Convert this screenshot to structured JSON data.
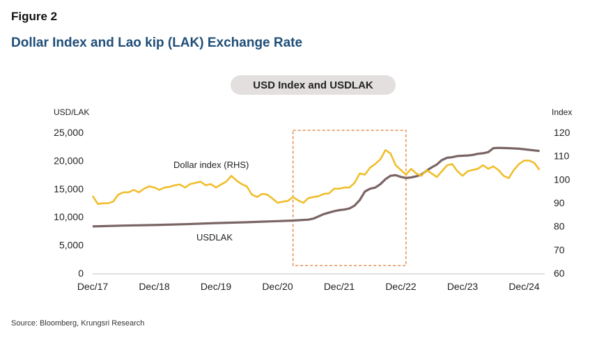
{
  "figure_label": "Figure 2",
  "title": "Dollar Index and Lao kip (LAK) Exchange Rate",
  "chart_title": "USD Index and USDLAK",
  "source": "Source: Bloomberg, Krungsri Research",
  "colors": {
    "dxy": "#f0be2c",
    "lak": "#7a6464",
    "box": "#e07a2e",
    "title": "#1f4e79"
  },
  "chart_data": {
    "type": "line",
    "y_left_label": "USD/LAK",
    "y_right_label": "Index",
    "y_left_ticks": [
      "25,000",
      "20,000",
      "15,000",
      "10,000",
      "5,000",
      "0"
    ],
    "y_right_ticks": [
      "120",
      "110",
      "100",
      "90",
      "80",
      "70",
      "60"
    ],
    "ylim_left": [
      0,
      25000
    ],
    "ylim_right": [
      60,
      120
    ],
    "x_ticks": [
      "Dec/17",
      "Dec/18",
      "Dec/19",
      "Dec/20",
      "Dec/21",
      "Dec/22",
      "Dec/23",
      "Dec/24"
    ],
    "highlight": {
      "x_start": "2021-03",
      "x_end": "2023-01"
    },
    "series": [
      {
        "name": "Dollar index (RHS)",
        "axis": "right",
        "points": [
          [
            "2017-12",
            93.0
          ],
          [
            "2018-01",
            89.5
          ],
          [
            "2018-02",
            89.8
          ],
          [
            "2018-03",
            89.8
          ],
          [
            "2018-04",
            90.5
          ],
          [
            "2018-05",
            93.5
          ],
          [
            "2018-06",
            94.5
          ],
          [
            "2018-07",
            94.5
          ],
          [
            "2018-08",
            95.5
          ],
          [
            "2018-09",
            94.5
          ],
          [
            "2018-10",
            96.0
          ],
          [
            "2018-11",
            97.0
          ],
          [
            "2018-12",
            96.5
          ],
          [
            "2019-01",
            95.5
          ],
          [
            "2019-02",
            96.5
          ],
          [
            "2019-03",
            96.8
          ],
          [
            "2019-04",
            97.5
          ],
          [
            "2019-05",
            97.8
          ],
          [
            "2019-06",
            96.5
          ],
          [
            "2019-07",
            98.0
          ],
          [
            "2019-08",
            98.5
          ],
          [
            "2019-09",
            99.0
          ],
          [
            "2019-10",
            97.5
          ],
          [
            "2019-11",
            98.0
          ],
          [
            "2019-12",
            96.5
          ],
          [
            "2020-01",
            97.8
          ],
          [
            "2020-02",
            99.0
          ],
          [
            "2020-03",
            101.5
          ],
          [
            "2020-04",
            99.5
          ],
          [
            "2020-05",
            98.0
          ],
          [
            "2020-06",
            97.0
          ],
          [
            "2020-07",
            93.5
          ],
          [
            "2020-08",
            92.5
          ],
          [
            "2020-09",
            93.8
          ],
          [
            "2020-10",
            93.5
          ],
          [
            "2020-11",
            91.8
          ],
          [
            "2020-12",
            90.0
          ],
          [
            "2021-01",
            90.5
          ],
          [
            "2021-02",
            90.8
          ],
          [
            "2021-03",
            92.5
          ],
          [
            "2021-04",
            91.0
          ],
          [
            "2021-05",
            90.0
          ],
          [
            "2021-06",
            92.0
          ],
          [
            "2021-07",
            92.5
          ],
          [
            "2021-08",
            92.8
          ],
          [
            "2021-09",
            93.8
          ],
          [
            "2021-10",
            94.0
          ],
          [
            "2021-11",
            96.0
          ],
          [
            "2021-12",
            96.0
          ],
          [
            "2022-01",
            96.5
          ],
          [
            "2022-02",
            96.5
          ],
          [
            "2022-03",
            98.5
          ],
          [
            "2022-04",
            102.5
          ],
          [
            "2022-05",
            102.0
          ],
          [
            "2022-06",
            105.0
          ],
          [
            "2022-07",
            106.5
          ],
          [
            "2022-08",
            108.5
          ],
          [
            "2022-09",
            112.5
          ],
          [
            "2022-10",
            111.0
          ],
          [
            "2022-11",
            106.0
          ],
          [
            "2022-12",
            104.0
          ],
          [
            "2023-01",
            102.0
          ],
          [
            "2023-02",
            104.5
          ],
          [
            "2023-03",
            102.5
          ],
          [
            "2023-04",
            101.5
          ],
          [
            "2023-05",
            104.0
          ],
          [
            "2023-06",
            102.5
          ],
          [
            "2023-07",
            101.0
          ],
          [
            "2023-08",
            103.5
          ],
          [
            "2023-09",
            106.0
          ],
          [
            "2023-10",
            106.5
          ],
          [
            "2023-11",
            103.5
          ],
          [
            "2023-12",
            101.5
          ],
          [
            "2024-01",
            103.5
          ],
          [
            "2024-02",
            104.0
          ],
          [
            "2024-03",
            104.5
          ],
          [
            "2024-04",
            106.0
          ],
          [
            "2024-05",
            104.5
          ],
          [
            "2024-06",
            105.5
          ],
          [
            "2024-07",
            104.0
          ],
          [
            "2024-08",
            101.5
          ],
          [
            "2024-09",
            100.5
          ],
          [
            "2024-10",
            104.0
          ],
          [
            "2024-11",
            106.5
          ],
          [
            "2024-12",
            108.0
          ],
          [
            "2025-01",
            108.0
          ],
          [
            "2025-02",
            107.0
          ],
          [
            "2025-03",
            104.0
          ]
        ]
      },
      {
        "name": "USDLAK",
        "axis": "left",
        "points": [
          [
            "2017-12",
            8300
          ],
          [
            "2018-06",
            8450
          ],
          [
            "2018-12",
            8550
          ],
          [
            "2019-06",
            8700
          ],
          [
            "2019-12",
            8900
          ],
          [
            "2020-06",
            9050
          ],
          [
            "2020-12",
            9250
          ],
          [
            "2021-03",
            9350
          ],
          [
            "2021-06",
            9500
          ],
          [
            "2021-07",
            9700
          ],
          [
            "2021-09",
            10500
          ],
          [
            "2021-11",
            11000
          ],
          [
            "2021-12",
            11200
          ],
          [
            "2022-01",
            11300
          ],
          [
            "2022-02",
            11500
          ],
          [
            "2022-03",
            12000
          ],
          [
            "2022-04",
            13000
          ],
          [
            "2022-05",
            14500
          ],
          [
            "2022-06",
            15000
          ],
          [
            "2022-07",
            15200
          ],
          [
            "2022-08",
            15800
          ],
          [
            "2022-09",
            16700
          ],
          [
            "2022-10",
            17300
          ],
          [
            "2022-11",
            17400
          ],
          [
            "2022-12",
            17100
          ],
          [
            "2023-01",
            16900
          ],
          [
            "2023-02",
            17000
          ],
          [
            "2023-03",
            17200
          ],
          [
            "2023-04",
            17500
          ],
          [
            "2023-05",
            18200
          ],
          [
            "2023-06",
            18800
          ],
          [
            "2023-07",
            19300
          ],
          [
            "2023-08",
            20100
          ],
          [
            "2023-09",
            20500
          ],
          [
            "2023-10",
            20600
          ],
          [
            "2023-11",
            20800
          ],
          [
            "2023-12",
            20850
          ],
          [
            "2024-01",
            20900
          ],
          [
            "2024-02",
            21000
          ],
          [
            "2024-03",
            21200
          ],
          [
            "2024-04",
            21300
          ],
          [
            "2024-05",
            21500
          ],
          [
            "2024-06",
            22200
          ],
          [
            "2024-07",
            22250
          ],
          [
            "2024-09",
            22200
          ],
          [
            "2024-11",
            22100
          ],
          [
            "2025-01",
            21900
          ],
          [
            "2025-03",
            21700
          ]
        ]
      }
    ],
    "series_labels": [
      "Dollar index (RHS)",
      "USDLAK"
    ]
  }
}
